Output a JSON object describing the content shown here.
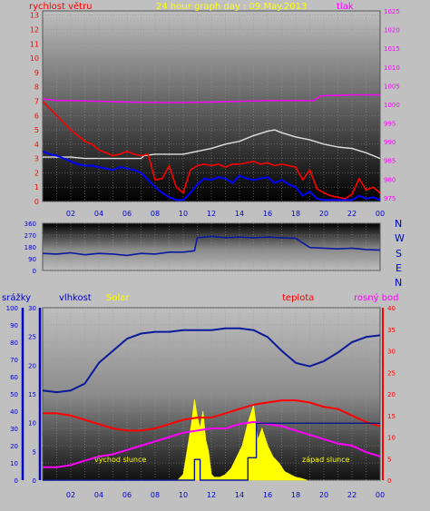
{
  "colors": {
    "background": "#c0c0c0",
    "panel_dark": "#000000",
    "panel_light": "#bdbdbd",
    "wind": "#ff0000",
    "gust": "#0000ff",
    "avg": "#e0e0e0",
    "pressure": "#ff00ff",
    "direction": "#0a1aa0",
    "humidity": "#0a1a9a",
    "solar": "#ffff00",
    "temperature": "#ff0000",
    "dewpoint": "#ff00ff",
    "rain": "#0a1a8a",
    "yellow_text": "#ffff00",
    "blue_text": "#0000cc",
    "red_text": "#ff0000",
    "magenta_text": "#ff00ff"
  },
  "header": {
    "title": "24 hour graph day : 09.May.2013",
    "wind_label": "rychlost větru",
    "pressure_label": "tlak"
  },
  "middle": {
    "compass": [
      "N",
      "W",
      "S",
      "E",
      "N"
    ]
  },
  "bottom": {
    "rain_label": "srážky",
    "humidity_label": "vlhkost",
    "solar_label": "Solar",
    "temp_label": "teplota",
    "dew_label": "rosný bod",
    "sunrise_label": "východ slunce",
    "sunset_label": "západ slunce"
  },
  "chart_data": [
    {
      "type": "line",
      "title": "24 hour graph day : 09.May.2013",
      "x_ticks": [
        "02",
        "04",
        "06",
        "08",
        "10",
        "12",
        "14",
        "16",
        "18",
        "20",
        "22",
        "00"
      ],
      "y_left_label": "rychlost větru",
      "y_left_ticks": [
        "0",
        "1",
        "2",
        "3",
        "4",
        "5",
        "6",
        "7",
        "8",
        "9",
        "10",
        "11",
        "12",
        "13"
      ],
      "ylim_left": [
        0,
        13.3
      ],
      "y_right_label": "tlak",
      "y_right_ticks": [
        "975",
        "980",
        "985",
        "990",
        "995",
        "1000",
        "1005",
        "1010",
        "1015",
        "1020",
        "1025"
      ],
      "ylim_right": [
        974,
        1025
      ],
      "series": [
        {
          "axis": "right",
          "color": "#ff00ff",
          "x": [
            0,
            1,
            2,
            4,
            6,
            8,
            10,
            12,
            14,
            16,
            18,
            19.3,
            19.8,
            22,
            24
          ],
          "values": [
            1001.5,
            1001,
            1001,
            1000.8,
            1000.6,
            1000.5,
            1000.5,
            1000.6,
            1000.8,
            1001,
            1001,
            1001,
            1002.3,
            1002.5,
            1002.5
          ]
        },
        {
          "axis": "left",
          "color": "#e0e0e0",
          "x": [
            0,
            1,
            2,
            3,
            4,
            5,
            6,
            7,
            7.2,
            8,
            9,
            10,
            11,
            12,
            13,
            14,
            15,
            16,
            16.5,
            17,
            18,
            19,
            20,
            21,
            22,
            23,
            24
          ],
          "values": [
            3.1,
            3.1,
            3.1,
            3.0,
            3.0,
            3.0,
            3.0,
            3.0,
            3.2,
            3.3,
            3.3,
            3.3,
            3.5,
            3.7,
            4.0,
            4.2,
            4.6,
            4.9,
            5.0,
            4.8,
            4.5,
            4.3,
            4.0,
            3.8,
            3.7,
            3.4,
            3.0
          ]
        },
        {
          "axis": "left",
          "color": "#ff0000",
          "x": [
            0,
            0.5,
            1,
            1.5,
            2,
            2.5,
            3,
            3.5,
            4,
            4.5,
            5,
            5.5,
            6,
            6.5,
            7,
            7.5,
            8,
            8.5,
            9,
            9.5,
            10,
            10.5,
            11,
            11.5,
            12,
            12.5,
            13,
            13.5,
            14,
            14.5,
            15,
            15.5,
            16,
            16.5,
            17,
            17.5,
            18,
            18.5,
            19,
            19.5,
            20,
            20.5,
            21,
            21.5,
            22,
            22.5,
            23,
            23.5,
            24
          ],
          "values": [
            7,
            6.5,
            6,
            5.5,
            5,
            4.6,
            4.2,
            4,
            3.6,
            3.4,
            3.2,
            3.3,
            3.5,
            3.3,
            3.2,
            3.3,
            1.5,
            1.6,
            2.5,
            1,
            0.6,
            2.2,
            2.5,
            2.6,
            2.5,
            2.6,
            2.4,
            2.6,
            2.6,
            2.7,
            2.8,
            2.6,
            2.7,
            2.5,
            2.6,
            2.5,
            2.4,
            1.5,
            2.2,
            0.9,
            0.6,
            0.4,
            0.3,
            0.2,
            0.5,
            1.6,
            0.8,
            1.0,
            0.6
          ]
        },
        {
          "axis": "left",
          "color": "#0000ff",
          "x": [
            0,
            0.5,
            1,
            1.5,
            2,
            2.5,
            3,
            3.5,
            4,
            4.5,
            5,
            5.5,
            6,
            6.5,
            7,
            7.5,
            8,
            8.5,
            9,
            9.5,
            10,
            10.5,
            11,
            11.5,
            12,
            12.5,
            13,
            13.5,
            14,
            14.5,
            15,
            15.5,
            16,
            16.5,
            17,
            17.5,
            18,
            18.5,
            19,
            19.5,
            20,
            20.5,
            21,
            21.5,
            22,
            22.5,
            23,
            23.5,
            24
          ],
          "values": [
            3.5,
            3.3,
            3.2,
            3.0,
            2.8,
            2.6,
            2.5,
            2.5,
            2.4,
            2.3,
            2.2,
            2.4,
            2.3,
            2.2,
            2.0,
            1.5,
            1.0,
            0.6,
            0.3,
            0.1,
            0.1,
            0.6,
            1.2,
            1.6,
            1.5,
            1.7,
            1.6,
            1.3,
            1.8,
            1.6,
            1.5,
            1.6,
            1.7,
            1.3,
            1.5,
            1.2,
            1.0,
            0.4,
            0.7,
            0.2,
            0.1,
            0.1,
            0.1,
            0.1,
            0.1,
            0.4,
            0.2,
            0.3,
            0.1
          ]
        }
      ]
    },
    {
      "type": "line",
      "y_ticks": [
        "360",
        "270",
        "180",
        "90",
        "0"
      ],
      "ylim": [
        0,
        360
      ],
      "series": [
        {
          "color": "#0a1aa0",
          "x": [
            0,
            1,
            2,
            3,
            4,
            5,
            6,
            7,
            8,
            9,
            10,
            10.8,
            11,
            12,
            13,
            14,
            15,
            16,
            17,
            18,
            19,
            20,
            21,
            22,
            23,
            24
          ],
          "values": [
            130,
            125,
            135,
            120,
            130,
            125,
            115,
            130,
            125,
            140,
            140,
            150,
            250,
            260,
            250,
            255,
            250,
            255,
            250,
            245,
            175,
            170,
            165,
            170,
            160,
            155
          ]
        }
      ]
    },
    {
      "type": "line",
      "x_ticks": [
        "02",
        "04",
        "06",
        "08",
        "10",
        "12",
        "14",
        "16",
        "18",
        "20",
        "22",
        "00"
      ],
      "y_rain_ticks": [
        "0",
        "10",
        "20",
        "30",
        "40",
        "50",
        "60",
        "70",
        "80",
        "90",
        "100"
      ],
      "y_rain_label": "srážky",
      "y_humidity_ticks": [
        "0",
        "5",
        "10",
        "15",
        "20",
        "25",
        "30"
      ],
      "y_humidity_label": "vlhkost",
      "y_temp_ticks": [
        "0",
        "5",
        "10",
        "15",
        "20",
        "25",
        "30",
        "35",
        "40"
      ],
      "y_temp_label": "teplota",
      "series": [
        {
          "name": "vlhkost",
          "axis": "rain",
          "color": "#0a1a9a",
          "x": [
            0,
            1,
            2,
            3,
            4,
            5,
            6,
            7,
            8,
            9,
            10,
            11,
            12,
            13,
            14,
            15,
            16,
            17,
            18,
            19,
            20,
            21,
            22,
            23,
            24
          ],
          "values": [
            52,
            51,
            52,
            56,
            68,
            75,
            82,
            85,
            86,
            86,
            87,
            87,
            87,
            88,
            88,
            87,
            83,
            75,
            68,
            66,
            69,
            74,
            80,
            83,
            84
          ]
        },
        {
          "name": "teplota",
          "axis": "temp",
          "color": "#ff0000",
          "x": [
            0,
            1,
            2,
            3,
            4,
            5,
            6,
            7,
            8,
            9,
            10,
            11,
            12,
            13,
            14,
            15,
            16,
            17,
            18,
            19,
            20,
            21,
            22,
            23,
            24
          ],
          "values": [
            15.5,
            15.5,
            15.0,
            14.0,
            13.0,
            12.0,
            11.5,
            11.5,
            12.0,
            13.0,
            14.0,
            14.5,
            14.5,
            15.5,
            16.5,
            17.5,
            18.0,
            18.5,
            18.5,
            18.0,
            17.0,
            16.5,
            15.0,
            13.5,
            12.5
          ]
        },
        {
          "name": "rosný bod",
          "axis": "temp",
          "color": "#ff00ff",
          "x": [
            0,
            1,
            2,
            3,
            4,
            5,
            6,
            7,
            8,
            9,
            10,
            11,
            12,
            13,
            14,
            15,
            16,
            17,
            18,
            19,
            20,
            21,
            22,
            23,
            24
          ],
          "values": [
            3.0,
            3.0,
            3.5,
            4.5,
            5.5,
            6.0,
            7.0,
            8.0,
            9.0,
            10.0,
            11.0,
            11.5,
            12.0,
            12.0,
            13.0,
            13.5,
            13.0,
            12.5,
            11.5,
            10.5,
            9.5,
            8.5,
            8.0,
            6.5,
            5.5
          ]
        },
        {
          "name": "Solar",
          "axis": "humidity",
          "color": "#ffff00",
          "x": [
            9.6,
            10.0,
            10.4,
            10.6,
            10.8,
            11.0,
            11.2,
            11.4,
            11.6,
            11.8,
            12.0,
            12.2,
            12.6,
            13.0,
            13.4,
            13.8,
            14.2,
            14.6,
            15.0,
            15.3,
            15.6,
            16.0,
            16.4,
            16.8,
            17.2,
            17.6,
            18.0,
            18.4,
            18.8
          ],
          "values": [
            0.0,
            1.0,
            7.0,
            10.0,
            14.0,
            11.0,
            9.0,
            12.0,
            7.0,
            5.0,
            1.0,
            0.5,
            0.5,
            1.0,
            2.0,
            4.0,
            6.0,
            10.0,
            13.0,
            7.0,
            9.0,
            6.0,
            4.0,
            3.0,
            1.5,
            1.0,
            0.5,
            0.3,
            0.0
          ]
        },
        {
          "name": "srážky",
          "axis": "rain",
          "color": "#0a1a8a",
          "x": [
            0,
            10.8,
            10.8,
            11.2,
            11.2,
            12.0,
            12.0,
            14.6,
            14.6,
            15.2,
            15.2,
            24
          ],
          "values": [
            0,
            0,
            12,
            12,
            0,
            0,
            0,
            0,
            13,
            13,
            33,
            33
          ]
        }
      ]
    }
  ]
}
